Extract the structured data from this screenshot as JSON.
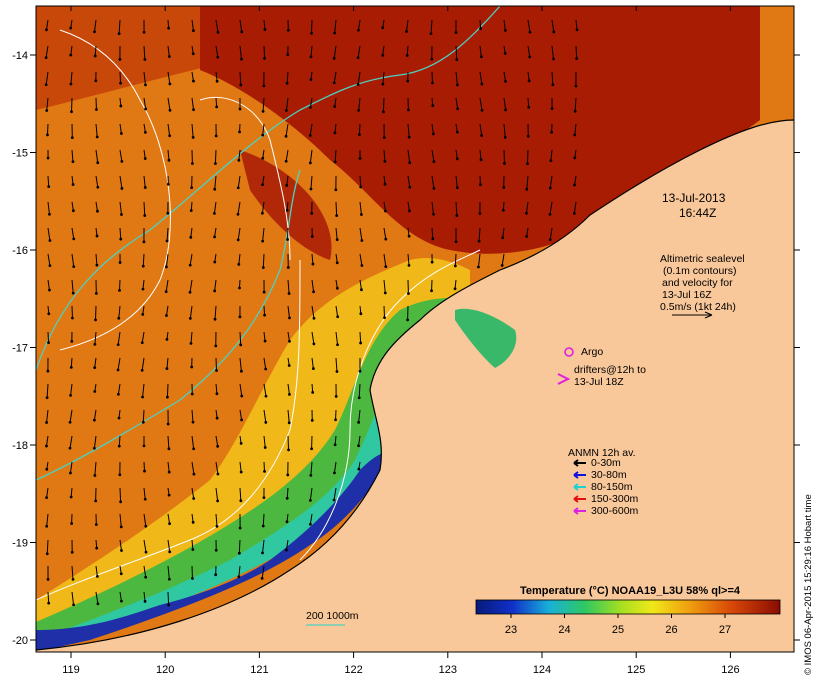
{
  "map": {
    "date_line1": "13-Jul-2013",
    "date_line2": "16:44Z",
    "lon_ticks": [
      "119",
      "120",
      "121",
      "122",
      "123",
      "124",
      "125",
      "126"
    ],
    "lat_ticks": [
      "-14",
      "-15",
      "-16",
      "-17",
      "-18",
      "-19",
      "-20"
    ],
    "colors": {
      "land": "#f9c89a",
      "ocean_shelf": "#e07814",
      "ocean_warm": "#c23c06",
      "ocean_hot": "#a51a04",
      "coastal_cool": "#56b846",
      "coastal_cold": "#1e2fa8",
      "contour_shelf": "#4fd0c0",
      "contour_sealevel": "#ffffff"
    }
  },
  "altimetry_legend": {
    "lines": [
      "Altimetric sealevel",
      "(0.1m contours)",
      "and velocity for",
      "13-Jul 16Z",
      "0.5m/s (1kt 24h)"
    ]
  },
  "argo_legend": {
    "argo_label": "Argo",
    "drifters_line1": "drifters@12h to",
    "drifters_line2": "13-Jul 18Z"
  },
  "anmn_legend": {
    "title": "ANMN 12h av.",
    "items": [
      {
        "label": "0-30m",
        "color": "#000000"
      },
      {
        "label": "30-80m",
        "color": "#1010e0"
      },
      {
        "label": "80-150m",
        "color": "#20d0d0"
      },
      {
        "label": "150-300m",
        "color": "#e01010"
      },
      {
        "label": "300-600m",
        "color": "#e020e0"
      }
    ]
  },
  "isobath_legend": {
    "label": "200  1000m"
  },
  "colorbar": {
    "title": "Temperature (°C) NOAA19_L3U 58% ql>=4",
    "ticks": [
      "23",
      "24",
      "25",
      "26",
      "27"
    ]
  },
  "side_text": "© IMOS 06-Apr-2015 15:29:16 Hobart time"
}
